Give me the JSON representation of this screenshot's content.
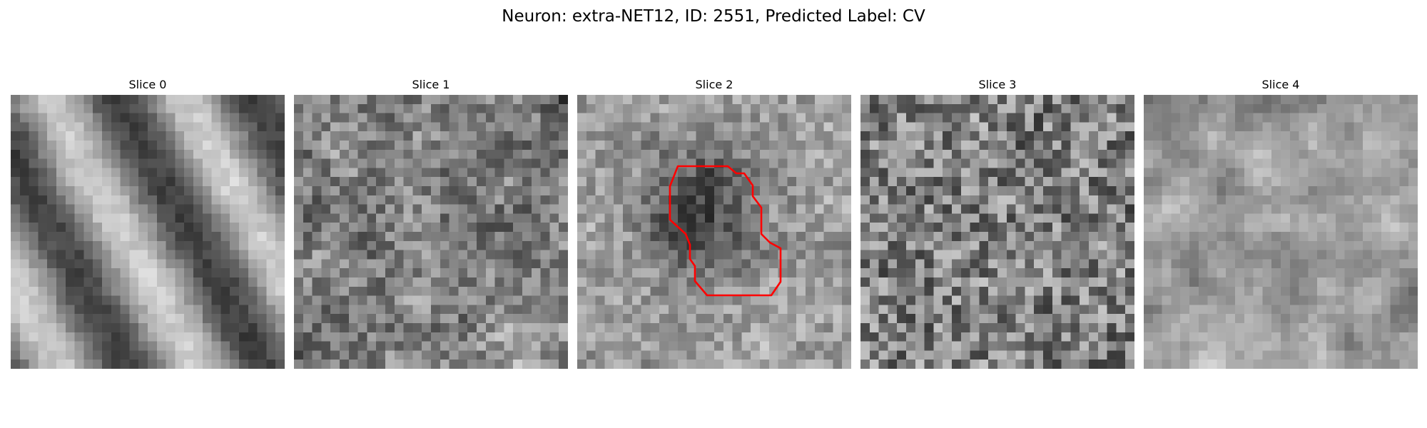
{
  "figure": {
    "title": "Neuron: extra-NET12, ID: 2551, Predicted Label: CV"
  },
  "slices": [
    {
      "title": "Slice 0",
      "texture": "smooth-elongated-bright-bands",
      "seed": 11,
      "has_outline": false
    },
    {
      "title": "Slice 1",
      "texture": "noisy-medium",
      "seed": 23,
      "has_outline": false
    },
    {
      "title": "Slice 2",
      "texture": "noisy-with-dark-blob",
      "seed": 37,
      "has_outline": true
    },
    {
      "title": "Slice 3",
      "texture": "high-noise",
      "seed": 41,
      "has_outline": false
    },
    {
      "title": "Slice 4",
      "texture": "smooth-blotchy",
      "seed": 53,
      "has_outline": false
    }
  ],
  "outline": {
    "color": "#ff0000",
    "slice_index": 2
  },
  "grid_size": 30,
  "colormap": "gray"
}
